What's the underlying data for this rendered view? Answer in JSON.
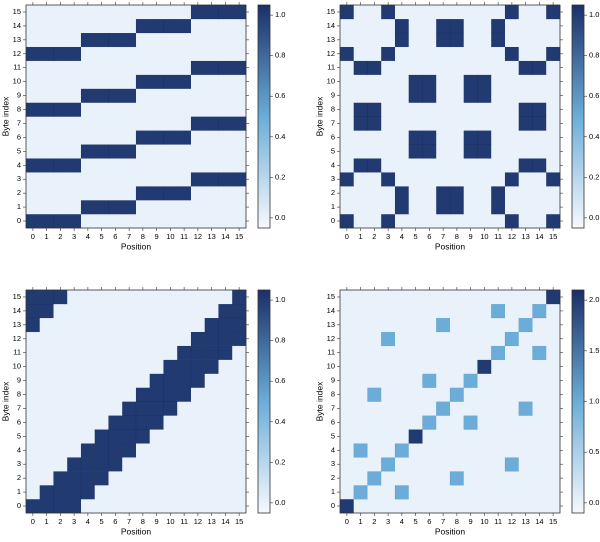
{
  "chart_data": [
    {
      "type": "heatmap",
      "x_label": "Position",
      "y_label": "Byte index",
      "x": [
        0,
        1,
        2,
        3,
        4,
        5,
        6,
        7,
        8,
        9,
        10,
        11,
        12,
        13,
        14,
        15
      ],
      "y": [
        0,
        1,
        2,
        3,
        4,
        5,
        6,
        7,
        8,
        9,
        10,
        11,
        12,
        13,
        14,
        15
      ],
      "values": [
        [
          1,
          1,
          1,
          1,
          0,
          0,
          0,
          0,
          0,
          0,
          0,
          0,
          0,
          0,
          0,
          0
        ],
        [
          0,
          0,
          0,
          0,
          1,
          1,
          1,
          1,
          0,
          0,
          0,
          0,
          0,
          0,
          0,
          0
        ],
        [
          0,
          0,
          0,
          0,
          0,
          0,
          0,
          0,
          1,
          1,
          1,
          1,
          0,
          0,
          0,
          0
        ],
        [
          0,
          0,
          0,
          0,
          0,
          0,
          0,
          0,
          0,
          0,
          0,
          0,
          1,
          1,
          1,
          1
        ],
        [
          1,
          1,
          1,
          1,
          0,
          0,
          0,
          0,
          0,
          0,
          0,
          0,
          0,
          0,
          0,
          0
        ],
        [
          0,
          0,
          0,
          0,
          1,
          1,
          1,
          1,
          0,
          0,
          0,
          0,
          0,
          0,
          0,
          0
        ],
        [
          0,
          0,
          0,
          0,
          0,
          0,
          0,
          0,
          1,
          1,
          1,
          1,
          0,
          0,
          0,
          0
        ],
        [
          0,
          0,
          0,
          0,
          0,
          0,
          0,
          0,
          0,
          0,
          0,
          0,
          1,
          1,
          1,
          1
        ],
        [
          1,
          1,
          1,
          1,
          0,
          0,
          0,
          0,
          0,
          0,
          0,
          0,
          0,
          0,
          0,
          0
        ],
        [
          0,
          0,
          0,
          0,
          1,
          1,
          1,
          1,
          0,
          0,
          0,
          0,
          0,
          0,
          0,
          0
        ],
        [
          0,
          0,
          0,
          0,
          0,
          0,
          0,
          0,
          1,
          1,
          1,
          1,
          0,
          0,
          0,
          0
        ],
        [
          0,
          0,
          0,
          0,
          0,
          0,
          0,
          0,
          0,
          0,
          0,
          0,
          1,
          1,
          1,
          1
        ],
        [
          1,
          1,
          1,
          1,
          0,
          0,
          0,
          0,
          0,
          0,
          0,
          0,
          0,
          0,
          0,
          0
        ],
        [
          0,
          0,
          0,
          0,
          1,
          1,
          1,
          1,
          0,
          0,
          0,
          0,
          0,
          0,
          0,
          0
        ],
        [
          0,
          0,
          0,
          0,
          0,
          0,
          0,
          0,
          1,
          1,
          1,
          1,
          0,
          0,
          0,
          0
        ],
        [
          0,
          0,
          0,
          0,
          0,
          0,
          0,
          0,
          0,
          0,
          0,
          0,
          1,
          1,
          1,
          1
        ]
      ],
      "zlim": [
        -0.05,
        1.05
      ],
      "zticks": [
        {
          "value": 0,
          "label": "0.0"
        },
        0.2,
        0.4,
        0.6,
        0.8,
        {
          "value": 1,
          "label": "1.0"
        }
      ],
      "colormap": [
        "#f6f9fd",
        "#6badd8",
        "#1b2f68"
      ]
    },
    {
      "type": "heatmap",
      "x_label": "Position",
      "y_label": "Byte index",
      "x": [
        0,
        1,
        2,
        3,
        4,
        5,
        6,
        7,
        8,
        9,
        10,
        11,
        12,
        13,
        14,
        15
      ],
      "y": [
        0,
        1,
        2,
        3,
        4,
        5,
        6,
        7,
        8,
        9,
        10,
        11,
        12,
        13,
        14,
        15
      ],
      "values": [
        [
          1,
          0,
          0,
          1,
          0,
          0,
          0,
          0,
          0,
          0,
          0,
          0,
          1,
          0,
          0,
          1
        ],
        [
          0,
          0,
          0,
          0,
          1,
          0,
          0,
          1,
          1,
          0,
          0,
          1,
          0,
          0,
          0,
          0
        ],
        [
          0,
          0,
          0,
          0,
          1,
          0,
          0,
          1,
          1,
          0,
          0,
          1,
          0,
          0,
          0,
          0
        ],
        [
          1,
          0,
          0,
          1,
          0,
          0,
          0,
          0,
          0,
          0,
          0,
          0,
          1,
          0,
          0,
          1
        ],
        [
          0,
          1,
          1,
          0,
          0,
          0,
          0,
          0,
          0,
          0,
          0,
          0,
          0,
          1,
          1,
          0
        ],
        [
          0,
          0,
          0,
          0,
          0,
          1,
          1,
          0,
          0,
          1,
          1,
          0,
          0,
          0,
          0,
          0
        ],
        [
          0,
          0,
          0,
          0,
          0,
          1,
          1,
          0,
          0,
          1,
          1,
          0,
          0,
          0,
          0,
          0
        ],
        [
          0,
          1,
          1,
          0,
          0,
          0,
          0,
          0,
          0,
          0,
          0,
          0,
          0,
          1,
          1,
          0
        ],
        [
          0,
          1,
          1,
          0,
          0,
          0,
          0,
          0,
          0,
          0,
          0,
          0,
          0,
          1,
          1,
          0
        ],
        [
          0,
          0,
          0,
          0,
          0,
          1,
          1,
          0,
          0,
          1,
          1,
          0,
          0,
          0,
          0,
          0
        ],
        [
          0,
          0,
          0,
          0,
          0,
          1,
          1,
          0,
          0,
          1,
          1,
          0,
          0,
          0,
          0,
          0
        ],
        [
          0,
          1,
          1,
          0,
          0,
          0,
          0,
          0,
          0,
          0,
          0,
          0,
          0,
          1,
          1,
          0
        ],
        [
          1,
          0,
          0,
          1,
          0,
          0,
          0,
          0,
          0,
          0,
          0,
          0,
          1,
          0,
          0,
          1
        ],
        [
          0,
          0,
          0,
          0,
          1,
          0,
          0,
          1,
          1,
          0,
          0,
          1,
          0,
          0,
          0,
          0
        ],
        [
          0,
          0,
          0,
          0,
          1,
          0,
          0,
          1,
          1,
          0,
          0,
          1,
          0,
          0,
          0,
          0
        ],
        [
          1,
          0,
          0,
          1,
          0,
          0,
          0,
          0,
          0,
          0,
          0,
          0,
          1,
          0,
          0,
          1
        ]
      ],
      "zlim": [
        -0.05,
        1.05
      ],
      "zticks": [
        {
          "value": 0,
          "label": "0.0"
        },
        0.2,
        0.4,
        0.6,
        0.8,
        {
          "value": 1,
          "label": "1.0"
        }
      ],
      "colormap": [
        "#f6f9fd",
        "#6badd8",
        "#1b2f68"
      ]
    },
    {
      "type": "heatmap",
      "x_label": "Position",
      "y_label": "Byte index",
      "x": [
        0,
        1,
        2,
        3,
        4,
        5,
        6,
        7,
        8,
        9,
        10,
        11,
        12,
        13,
        14,
        15
      ],
      "y": [
        0,
        1,
        2,
        3,
        4,
        5,
        6,
        7,
        8,
        9,
        10,
        11,
        12,
        13,
        14,
        15
      ],
      "values": [
        [
          1,
          1,
          1,
          1,
          0,
          0,
          0,
          0,
          0,
          0,
          0,
          0,
          0,
          0,
          0,
          0
        ],
        [
          0,
          1,
          1,
          1,
          1,
          0,
          0,
          0,
          0,
          0,
          0,
          0,
          0,
          0,
          0,
          0
        ],
        [
          0,
          0,
          1,
          1,
          1,
          1,
          0,
          0,
          0,
          0,
          0,
          0,
          0,
          0,
          0,
          0
        ],
        [
          0,
          0,
          0,
          1,
          1,
          1,
          1,
          0,
          0,
          0,
          0,
          0,
          0,
          0,
          0,
          0
        ],
        [
          0,
          0,
          0,
          0,
          1,
          1,
          1,
          1,
          0,
          0,
          0,
          0,
          0,
          0,
          0,
          0
        ],
        [
          0,
          0,
          0,
          0,
          0,
          1,
          1,
          1,
          1,
          0,
          0,
          0,
          0,
          0,
          0,
          0
        ],
        [
          0,
          0,
          0,
          0,
          0,
          0,
          1,
          1,
          1,
          1,
          0,
          0,
          0,
          0,
          0,
          0
        ],
        [
          0,
          0,
          0,
          0,
          0,
          0,
          0,
          1,
          1,
          1,
          1,
          0,
          0,
          0,
          0,
          0
        ],
        [
          0,
          0,
          0,
          0,
          0,
          0,
          0,
          0,
          1,
          1,
          1,
          1,
          0,
          0,
          0,
          0
        ],
        [
          0,
          0,
          0,
          0,
          0,
          0,
          0,
          0,
          0,
          1,
          1,
          1,
          1,
          0,
          0,
          0
        ],
        [
          0,
          0,
          0,
          0,
          0,
          0,
          0,
          0,
          0,
          0,
          1,
          1,
          1,
          1,
          0,
          0
        ],
        [
          0,
          0,
          0,
          0,
          0,
          0,
          0,
          0,
          0,
          0,
          0,
          1,
          1,
          1,
          1,
          0
        ],
        [
          0,
          0,
          0,
          0,
          0,
          0,
          0,
          0,
          0,
          0,
          0,
          0,
          1,
          1,
          1,
          1
        ],
        [
          1,
          0,
          0,
          0,
          0,
          0,
          0,
          0,
          0,
          0,
          0,
          0,
          0,
          1,
          1,
          1
        ],
        [
          1,
          1,
          0,
          0,
          0,
          0,
          0,
          0,
          0,
          0,
          0,
          0,
          0,
          0,
          1,
          1
        ],
        [
          1,
          1,
          1,
          0,
          0,
          0,
          0,
          0,
          0,
          0,
          0,
          0,
          0,
          0,
          0,
          1
        ]
      ],
      "zlim": [
        -0.05,
        1.05
      ],
      "zticks": [
        {
          "value": 0,
          "label": "0.0"
        },
        0.2,
        0.4,
        0.6,
        0.8,
        {
          "value": 1,
          "label": "1.0"
        }
      ],
      "colormap": [
        "#f6f9fd",
        "#6badd8",
        "#1b2f68"
      ]
    },
    {
      "type": "heatmap",
      "x_label": "Position",
      "y_label": "Byte index",
      "x": [
        0,
        1,
        2,
        3,
        4,
        5,
        6,
        7,
        8,
        9,
        10,
        11,
        12,
        13,
        14,
        15
      ],
      "y": [
        0,
        1,
        2,
        3,
        4,
        5,
        6,
        7,
        8,
        9,
        10,
        11,
        12,
        13,
        14,
        15
      ],
      "values": [
        [
          2,
          0,
          0,
          0,
          0,
          0,
          0,
          0,
          0,
          0,
          0,
          0,
          0,
          0,
          0,
          0
        ],
        [
          0,
          1,
          0,
          0,
          1,
          0,
          0,
          0,
          0,
          0,
          0,
          0,
          0,
          0,
          0,
          0
        ],
        [
          0,
          0,
          1,
          0,
          0,
          0,
          0,
          0,
          1,
          0,
          0,
          0,
          0,
          0,
          0,
          0
        ],
        [
          0,
          0,
          0,
          1,
          0,
          0,
          0,
          0,
          0,
          0,
          0,
          0,
          1,
          0,
          0,
          0
        ],
        [
          0,
          1,
          0,
          0,
          1,
          0,
          0,
          0,
          0,
          0,
          0,
          0,
          0,
          0,
          0,
          0
        ],
        [
          0,
          0,
          0,
          0,
          0,
          2,
          0,
          0,
          0,
          0,
          0,
          0,
          0,
          0,
          0,
          0
        ],
        [
          0,
          0,
          0,
          0,
          0,
          0,
          1,
          0,
          0,
          1,
          0,
          0,
          0,
          0,
          0,
          0
        ],
        [
          0,
          0,
          0,
          0,
          0,
          0,
          0,
          1,
          0,
          0,
          0,
          0,
          0,
          1,
          0,
          0
        ],
        [
          0,
          0,
          1,
          0,
          0,
          0,
          0,
          0,
          1,
          0,
          0,
          0,
          0,
          0,
          0,
          0
        ],
        [
          0,
          0,
          0,
          0,
          0,
          0,
          1,
          0,
          0,
          1,
          0,
          0,
          0,
          0,
          0,
          0
        ],
        [
          0,
          0,
          0,
          0,
          0,
          0,
          0,
          0,
          0,
          0,
          2,
          0,
          0,
          0,
          0,
          0
        ],
        [
          0,
          0,
          0,
          0,
          0,
          0,
          0,
          0,
          0,
          0,
          0,
          1,
          0,
          0,
          1,
          0
        ],
        [
          0,
          0,
          0,
          1,
          0,
          0,
          0,
          0,
          0,
          0,
          0,
          0,
          1,
          0,
          0,
          0
        ],
        [
          0,
          0,
          0,
          0,
          0,
          0,
          0,
          1,
          0,
          0,
          0,
          0,
          0,
          1,
          0,
          0
        ],
        [
          0,
          0,
          0,
          0,
          0,
          0,
          0,
          0,
          0,
          0,
          0,
          1,
          0,
          0,
          1,
          0
        ],
        [
          0,
          0,
          0,
          0,
          0,
          0,
          0,
          0,
          0,
          0,
          0,
          0,
          0,
          0,
          0,
          2
        ]
      ],
      "zlim": [
        -0.1,
        2.1
      ],
      "zticks": [
        {
          "value": 0,
          "label": "0.0"
        },
        0.5,
        {
          "value": 1,
          "label": "1.0"
        },
        1.5,
        {
          "value": 2,
          "label": "2.0"
        }
      ],
      "colormap": [
        "#f6f9fd",
        "#6badd8",
        "#1b2f68"
      ]
    }
  ]
}
